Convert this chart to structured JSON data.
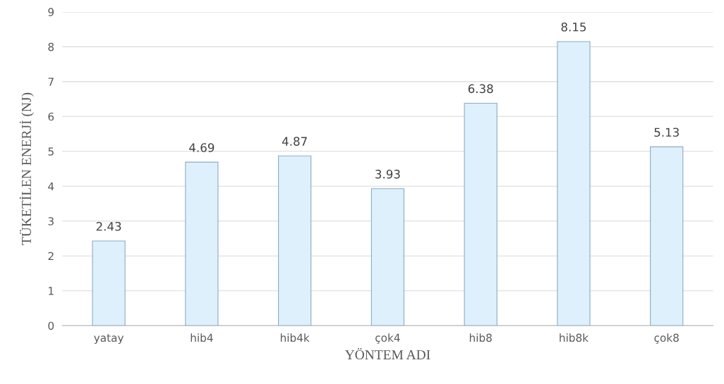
{
  "chart_data": {
    "type": "bar",
    "categories": [
      "yatay",
      "hib4",
      "hib4k",
      "çok4",
      "hib8",
      "hib8k",
      "çok8"
    ],
    "values": [
      2.43,
      4.69,
      4.87,
      3.93,
      6.38,
      8.15,
      5.13
    ],
    "color": "#ddf0fc",
    "xlabel": "YÖNTEM ADI",
    "ylabel": "TÜKETİLEN ENERJİ (NJ)",
    "ylim": [
      0,
      9
    ],
    "yticks": [
      0,
      1,
      2,
      3,
      4,
      5,
      6,
      7,
      8,
      9
    ],
    "grid": "y",
    "data_labels": true
  }
}
